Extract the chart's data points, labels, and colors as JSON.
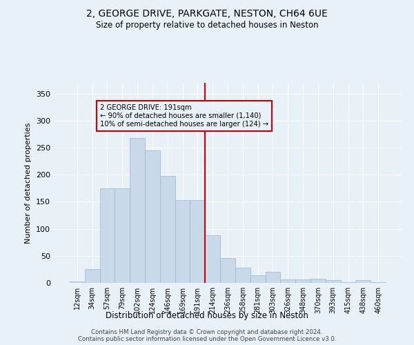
{
  "title1": "2, GEORGE DRIVE, PARKGATE, NESTON, CH64 6UE",
  "title2": "Size of property relative to detached houses in Neston",
  "xlabel": "Distribution of detached houses by size in Neston",
  "ylabel": "Number of detached properties",
  "bar_labels": [
    "12sqm",
    "34sqm",
    "57sqm",
    "79sqm",
    "102sqm",
    "124sqm",
    "146sqm",
    "169sqm",
    "191sqm",
    "214sqm",
    "236sqm",
    "258sqm",
    "281sqm",
    "303sqm",
    "326sqm",
    "348sqm",
    "370sqm",
    "393sqm",
    "415sqm",
    "438sqm",
    "460sqm"
  ],
  "bar_values": [
    2,
    25,
    175,
    175,
    268,
    245,
    198,
    153,
    153,
    88,
    46,
    28,
    14,
    21,
    7,
    7,
    8,
    5,
    1,
    5,
    1
  ],
  "bar_color": "#c9d9ea",
  "bar_edgecolor": "#9ab4cc",
  "vline_color": "#cc0000",
  "annotation_text": "2 GEORGE DRIVE: 191sqm\n← 90% of detached houses are smaller (1,140)\n10% of semi-detached houses are larger (124) →",
  "annotation_box_color": "#cc0000",
  "background_color": "#e8f0f8",
  "grid_color": "#ffffff",
  "ylim": [
    0,
    370
  ],
  "yticks": [
    0,
    50,
    100,
    150,
    200,
    250,
    300,
    350
  ],
  "footer1": "Contains HM Land Registry data © Crown copyright and database right 2024.",
  "footer2": "Contains public sector information licensed under the Open Government Licence v3.0."
}
